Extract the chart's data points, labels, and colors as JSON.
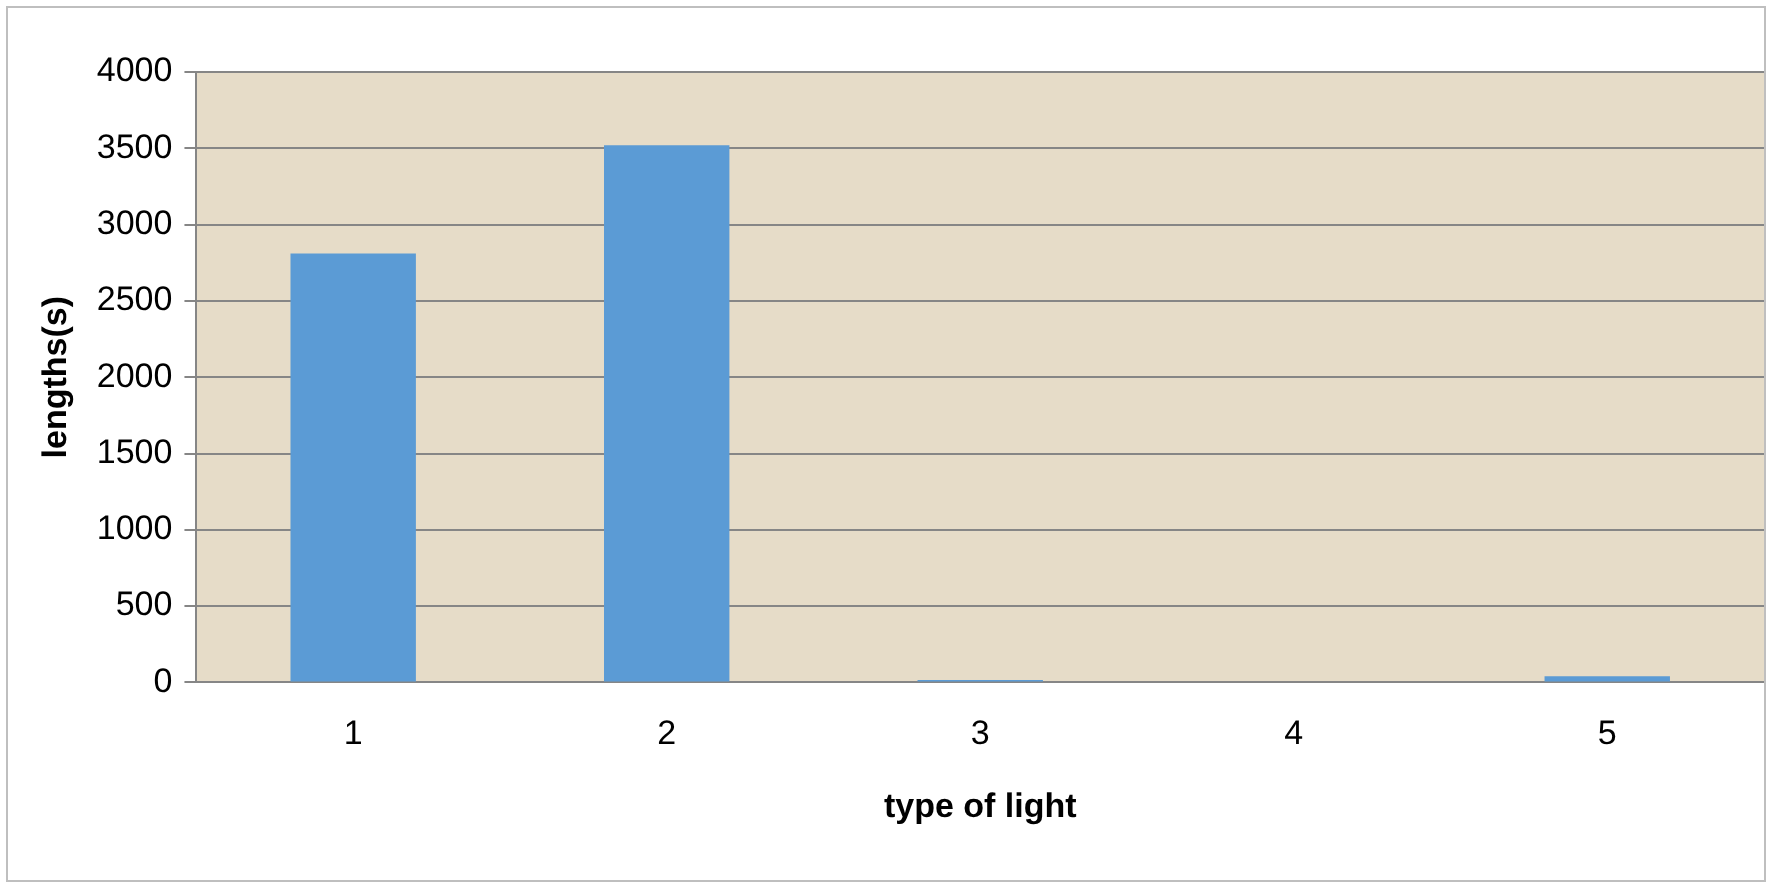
{
  "chart_data": {
    "type": "bar",
    "xlabel": "type of light",
    "ylabel": "lengths(s)",
    "categories": [
      "1",
      "2",
      "3",
      "4",
      "5"
    ],
    "values": [
      2810,
      3520,
      15,
      0,
      40
    ],
    "color": "#5b9bd5",
    "ylim": [
      0,
      4000
    ],
    "yticks": [
      0,
      500,
      1000,
      1500,
      2000,
      2500,
      3000,
      3500,
      4000
    ],
    "grid": "y",
    "legend": false
  }
}
